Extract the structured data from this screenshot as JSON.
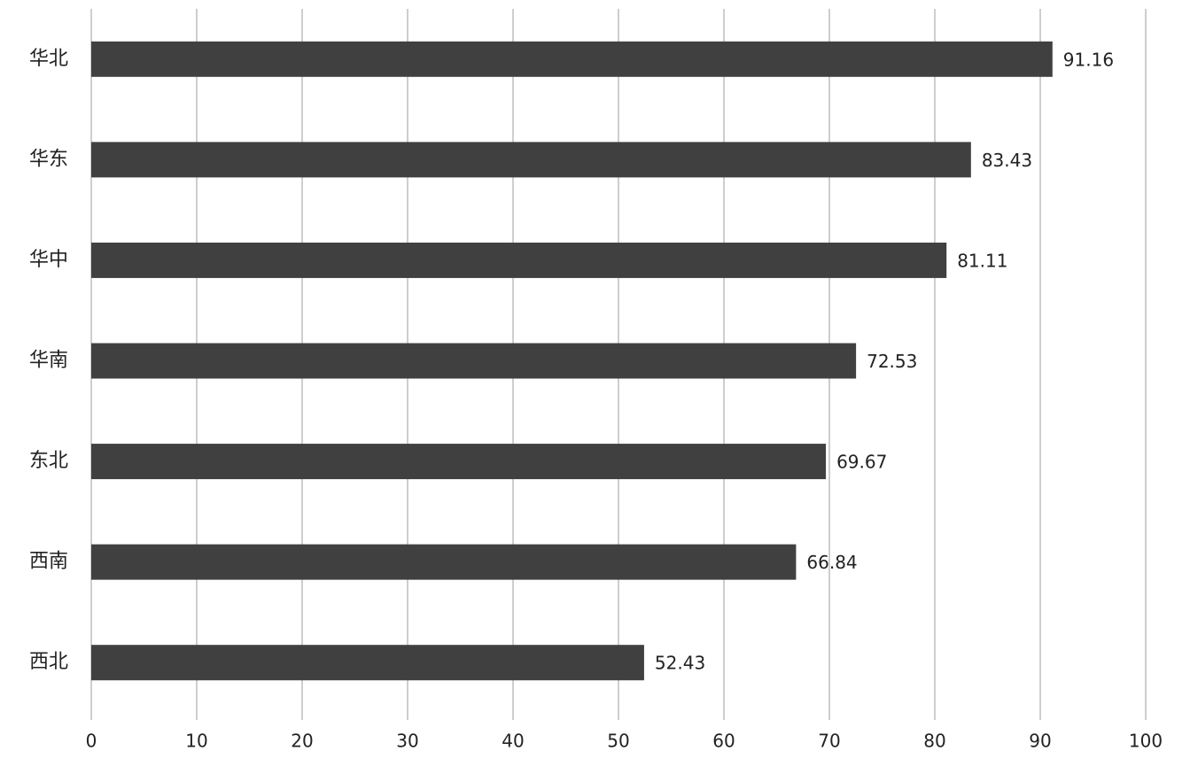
{
  "chart_data": {
    "type": "bar",
    "orientation": "horizontal",
    "categories": [
      "华北",
      "华东",
      "华中",
      "华南",
      "东北",
      "西南",
      "西北"
    ],
    "values": [
      91.16,
      83.43,
      81.11,
      72.53,
      69.67,
      66.84,
      52.43
    ],
    "color": "#404040",
    "xlim": [
      0,
      100
    ],
    "xticks": [
      0,
      10,
      20,
      30,
      40,
      50,
      60,
      70,
      80,
      90,
      100
    ],
    "grid": true,
    "data_labels": true
  }
}
